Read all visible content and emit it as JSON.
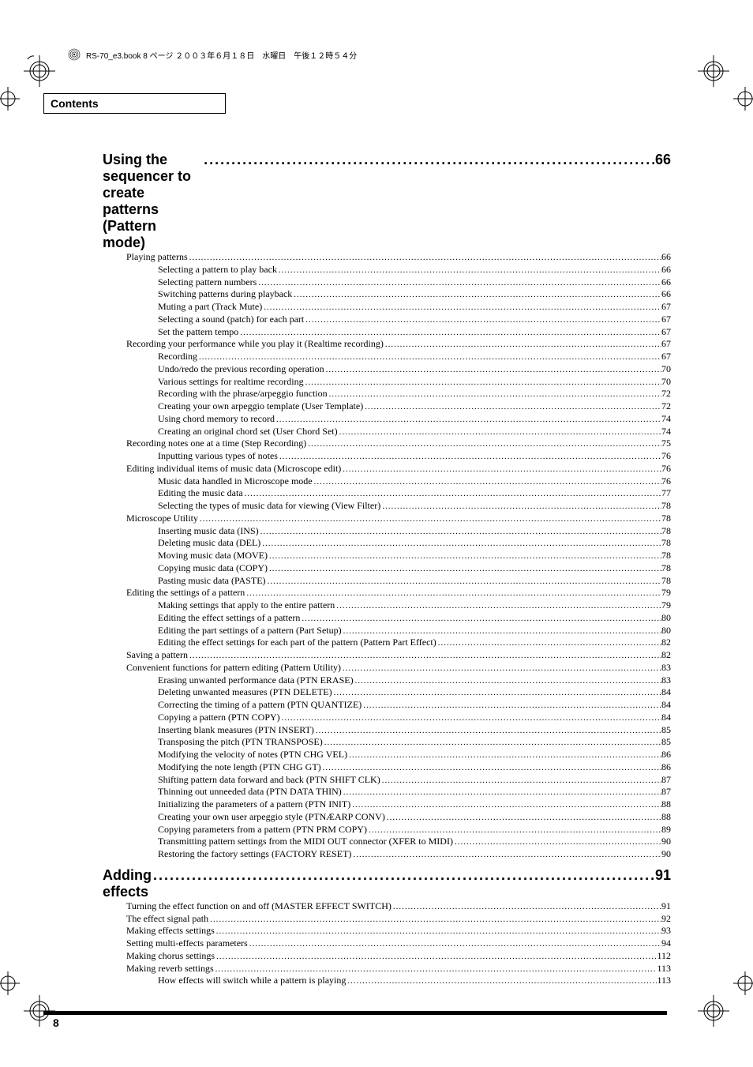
{
  "header_text": "RS-70_e3.book 8 ページ ２００３年６月１８日　水曜日　午後１２時５４分",
  "contents_label": "Contents",
  "page_number": "8",
  "sections": [
    {
      "title": "Using the sequencer to create patterns (Pattern mode)",
      "page": "66",
      "entries": [
        {
          "level": 1,
          "label": "Playing patterns",
          "page": "66"
        },
        {
          "level": 2,
          "label": "Selecting a pattern to play back",
          "page": "66"
        },
        {
          "level": 2,
          "label": "Selecting pattern numbers",
          "page": "66"
        },
        {
          "level": 2,
          "label": "Switching patterns during playback",
          "page": "66"
        },
        {
          "level": 2,
          "label": "Muting a part (Track Mute)",
          "page": "67"
        },
        {
          "level": 2,
          "label": "Selecting a sound (patch) for each part",
          "page": "67"
        },
        {
          "level": 2,
          "label": "Set the pattern tempo",
          "page": "67"
        },
        {
          "level": 1,
          "label": "Recording your performance while you play it (Realtime recording)",
          "page": "67"
        },
        {
          "level": 2,
          "label": "Recording",
          "page": "67"
        },
        {
          "level": 2,
          "label": "Undo/redo the previous recording operation",
          "page": "70"
        },
        {
          "level": 2,
          "label": "Various settings for realtime recording",
          "page": "70"
        },
        {
          "level": 2,
          "label": "Recording with the phrase/arpeggio function",
          "page": "72"
        },
        {
          "level": 2,
          "label": "Creating your own arpeggio template (User Template)",
          "page": "72"
        },
        {
          "level": 2,
          "label": "Using chord memory to record",
          "page": "74"
        },
        {
          "level": 2,
          "label": "Creating an original chord set (User Chord Set)",
          "page": "74"
        },
        {
          "level": 1,
          "label": "Recording notes one at a time (Step Recording)",
          "page": "75"
        },
        {
          "level": 2,
          "label": "Inputting various types of notes",
          "page": "76"
        },
        {
          "level": 1,
          "label": "Editing individual items of music data (Microscope edit)",
          "page": "76"
        },
        {
          "level": 2,
          "label": "Music data handled in Microscope mode",
          "page": "76"
        },
        {
          "level": 2,
          "label": "Editing the music data",
          "page": "77"
        },
        {
          "level": 2,
          "label": "Selecting the types of music data for viewing (View Filter)",
          "page": "78"
        },
        {
          "level": 1,
          "label": "Microscope Utility",
          "page": "78"
        },
        {
          "level": 2,
          "label": "Inserting music data (INS)",
          "page": "78"
        },
        {
          "level": 2,
          "label": "Deleting music data (DEL)",
          "page": "78"
        },
        {
          "level": 2,
          "label": "Moving music data (MOVE)",
          "page": "78"
        },
        {
          "level": 2,
          "label": "Copying music data (COPY)",
          "page": "78"
        },
        {
          "level": 2,
          "label": "Pasting music data (PASTE)",
          "page": "78"
        },
        {
          "level": 1,
          "label": "Editing the settings of a pattern",
          "page": "79"
        },
        {
          "level": 2,
          "label": "Making settings that apply to the entire pattern",
          "page": "79"
        },
        {
          "level": 2,
          "label": "Editing the effect settings of a pattern",
          "page": "80"
        },
        {
          "level": 2,
          "label": "Editing the part settings of a pattern (Part Setup)",
          "page": "80"
        },
        {
          "level": 2,
          "label": "Editing the effect settings for each part of the pattern (Pattern Part Effect)",
          "page": "82"
        },
        {
          "level": 1,
          "label": "Saving a pattern",
          "page": "82"
        },
        {
          "level": 1,
          "label": "Convenient functions for pattern editing (Pattern Utility)",
          "page": "83"
        },
        {
          "level": 2,
          "label": "Erasing unwanted performance data (PTN ERASE)",
          "page": "83"
        },
        {
          "level": 2,
          "label": "Deleting unwanted measures (PTN DELETE)",
          "page": "84"
        },
        {
          "level": 2,
          "label": "Correcting the timing of a pattern (PTN QUANTIZE)",
          "page": "84"
        },
        {
          "level": 2,
          "label": "Copying a pattern (PTN COPY)",
          "page": "84"
        },
        {
          "level": 2,
          "label": "Inserting blank measures (PTN INSERT)",
          "page": "85"
        },
        {
          "level": 2,
          "label": "Transposing the pitch (PTN TRANSPOSE)",
          "page": "85"
        },
        {
          "level": 2,
          "label": "Modifying the velocity of notes (PTN CHG VEL)",
          "page": "86"
        },
        {
          "level": 2,
          "label": "Modifying the note length (PTN CHG GT)",
          "page": "86"
        },
        {
          "level": 2,
          "label": "Shifting pattern data forward and back (PTN SHIFT CLK)",
          "page": "87"
        },
        {
          "level": 2,
          "label": "Thinning out unneeded data (PTN DATA THIN)",
          "page": "87"
        },
        {
          "level": 2,
          "label": "Initializing the parameters of a pattern (PTN INIT)",
          "page": "88"
        },
        {
          "level": 2,
          "label": "Creating your own user arpeggio style (PTNÆARP CONV)",
          "page": "88"
        },
        {
          "level": 2,
          "label": "Copying parameters from a pattern (PTN PRM COPY)",
          "page": "89"
        },
        {
          "level": 2,
          "label": "Transmitting pattern settings from the MIDI OUT connector (XFER to MIDI)",
          "page": "90"
        },
        {
          "level": 2,
          "label": "Restoring the factory settings (FACTORY RESET)",
          "page": "90"
        }
      ]
    },
    {
      "title": "Adding effects",
      "page": "91",
      "entries": [
        {
          "level": 1,
          "label": "Turning the effect function on and off (MASTER EFFECT SWITCH)",
          "page": "91"
        },
        {
          "level": 1,
          "label": "The effect signal path",
          "page": "92"
        },
        {
          "level": 1,
          "label": "Making effects settings",
          "page": "93"
        },
        {
          "level": 1,
          "label": "Setting multi-effects parameters",
          "page": "94"
        },
        {
          "level": 1,
          "label": "Making chorus settings",
          "page": "112"
        },
        {
          "level": 1,
          "label": "Making reverb settings",
          "page": "113"
        },
        {
          "level": 2,
          "label": "How effects will switch while a pattern is playing",
          "page": "113"
        }
      ]
    }
  ]
}
